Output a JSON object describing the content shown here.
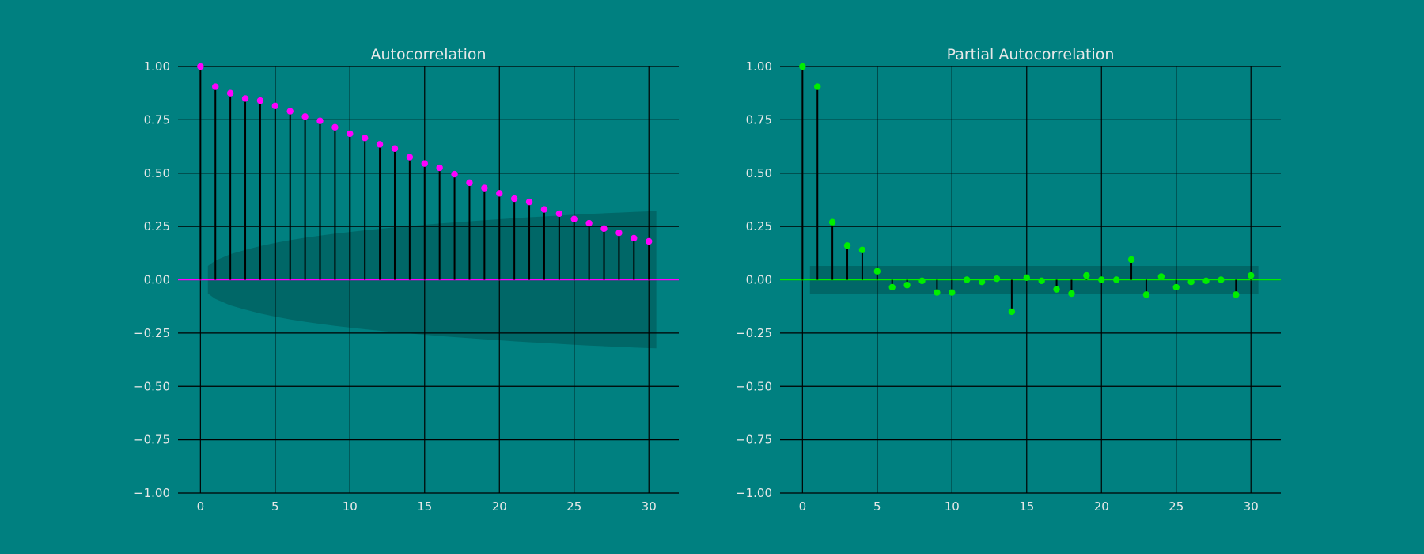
{
  "colors": {
    "background": "#008080",
    "grid": "#000000",
    "stem": "#000000",
    "confint": "#005f5f",
    "text": "#e8e8e8"
  },
  "chart_data": [
    {
      "type": "stem",
      "title": "Autocorrelation",
      "xlim": [
        -1.5,
        32
      ],
      "ylim": [
        -1.0,
        1.0
      ],
      "grid": true,
      "x_ticks": [
        0,
        5,
        10,
        15,
        20,
        25,
        30
      ],
      "y_ticks": [
        1.0,
        0.75,
        0.5,
        0.25,
        0.0,
        -0.25,
        -0.5,
        -0.75,
        -1.0
      ],
      "x_tick_labels": [
        "0",
        "5",
        "10",
        "15",
        "20",
        "25",
        "30"
      ],
      "y_tick_labels": [
        "1.00",
        "0.75",
        "0.50",
        "0.25",
        "0.00",
        "−0.25",
        "−0.50",
        "−0.75",
        "−1.00"
      ],
      "marker_color": "#ff00ff",
      "zero_line_color": "#ff00ff",
      "lags": [
        0,
        1,
        2,
        3,
        4,
        5,
        6,
        7,
        8,
        9,
        10,
        11,
        12,
        13,
        14,
        15,
        16,
        17,
        18,
        19,
        20,
        21,
        22,
        23,
        24,
        25,
        26,
        27,
        28,
        29,
        30
      ],
      "values": [
        1.0,
        0.905,
        0.875,
        0.85,
        0.84,
        0.815,
        0.79,
        0.765,
        0.745,
        0.715,
        0.685,
        0.665,
        0.635,
        0.615,
        0.575,
        0.545,
        0.525,
        0.495,
        0.455,
        0.43,
        0.405,
        0.38,
        0.365,
        0.33,
        0.31,
        0.285,
        0.265,
        0.24,
        0.22,
        0.195,
        0.18
      ],
      "confint": {
        "lags": [
          0.5,
          1,
          2,
          3,
          4,
          5,
          6,
          7,
          8,
          9,
          10,
          11,
          12,
          13,
          14,
          15,
          16,
          17,
          18,
          19,
          20,
          21,
          22,
          23,
          24,
          25,
          26,
          27,
          28,
          29,
          30,
          30.5
        ],
        "upper": [
          0.065,
          0.09,
          0.12,
          0.14,
          0.158,
          0.173,
          0.186,
          0.197,
          0.207,
          0.216,
          0.224,
          0.232,
          0.239,
          0.246,
          0.252,
          0.258,
          0.264,
          0.269,
          0.274,
          0.279,
          0.284,
          0.289,
          0.293,
          0.297,
          0.301,
          0.305,
          0.309,
          0.312,
          0.315,
          0.318,
          0.321,
          0.322
        ]
      }
    },
    {
      "type": "stem",
      "title": "Partial Autocorrelation",
      "xlim": [
        -1.5,
        32
      ],
      "ylim": [
        -1.0,
        1.0
      ],
      "grid": true,
      "x_ticks": [
        0,
        5,
        10,
        15,
        20,
        25,
        30
      ],
      "y_ticks": [
        1.0,
        0.75,
        0.5,
        0.25,
        0.0,
        -0.25,
        -0.5,
        -0.75,
        -1.0
      ],
      "x_tick_labels": [
        "0",
        "5",
        "10",
        "15",
        "20",
        "25",
        "30"
      ],
      "y_tick_labels": [
        "1.00",
        "0.75",
        "0.50",
        "0.25",
        "0.00",
        "−0.25",
        "−0.50",
        "−0.75",
        "−1.00"
      ],
      "marker_color": "#00ee00",
      "zero_line_color": "#00ee00",
      "lags": [
        0,
        1,
        2,
        3,
        4,
        5,
        6,
        7,
        8,
        9,
        10,
        11,
        12,
        13,
        14,
        15,
        16,
        17,
        18,
        19,
        20,
        21,
        22,
        23,
        24,
        25,
        26,
        27,
        28,
        29,
        30
      ],
      "values": [
        1.0,
        0.905,
        0.27,
        0.16,
        0.14,
        0.04,
        -0.035,
        -0.025,
        -0.005,
        -0.06,
        -0.06,
        0.0,
        -0.01,
        0.005,
        -0.15,
        0.01,
        -0.005,
        -0.045,
        -0.065,
        0.02,
        0.0,
        0.0,
        0.095,
        -0.07,
        0.015,
        -0.035,
        -0.01,
        -0.005,
        0.0,
        -0.07,
        0.02
      ],
      "confint": {
        "lags": [
          0.5,
          30.5
        ],
        "upper": [
          0.065,
          0.065
        ]
      }
    }
  ]
}
